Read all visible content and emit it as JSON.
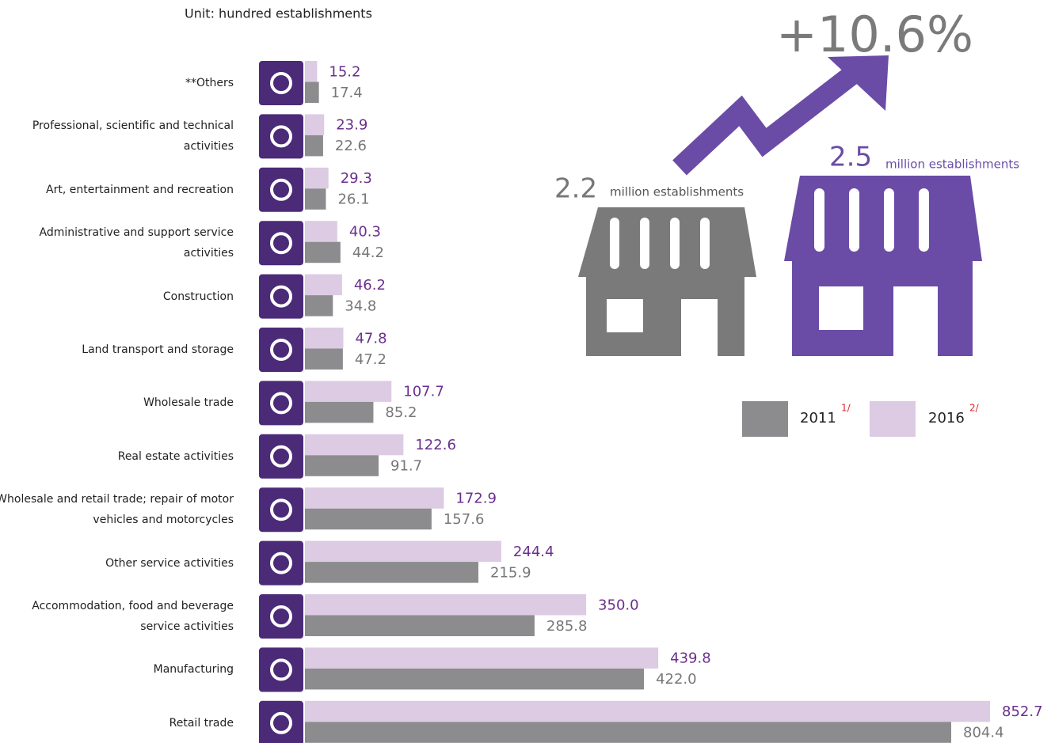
{
  "chart_data": {
    "type": "hbar-grouped",
    "title": "Unit: hundred establishments",
    "categories": [
      "**Others",
      "Professional, scientific and technical activities",
      "Art, entertainment and recreation",
      "Administrative and support service activities",
      "Construction",
      "Land transport and storage",
      "Wholesale trade",
      "Real estate activities",
      "Wholesale and retail trade; repair of motor vehicles and motorcycles",
      "Other service activities",
      "Accommodation, food and beverage service activities",
      "Manufacturing",
      "Retail trade"
    ],
    "series": [
      {
        "name": "2011",
        "color": "#8c8c8e",
        "label_color": "#777777",
        "values": [
          17.4,
          22.6,
          26.1,
          44.2,
          34.8,
          47.2,
          85.2,
          91.7,
          157.6,
          215.9,
          285.8,
          422.0,
          804.4
        ],
        "value_labels": [
          "17.4",
          "22.6",
          "26.1",
          "44.2",
          "34.8",
          "47.2",
          "85.2",
          "91.7",
          "157.6",
          "215.9",
          "285.8",
          "422.0",
          "804.4"
        ]
      },
      {
        "name": "2016",
        "color": "#dccbe3",
        "label_color": "#6a2f8e",
        "values": [
          15.2,
          23.9,
          29.3,
          40.3,
          46.2,
          47.8,
          107.7,
          122.6,
          172.9,
          244.4,
          350.0,
          439.8,
          852.7
        ],
        "value_labels": [
          "15.2",
          "23.9",
          "29.3",
          "40.3",
          "46.2",
          "47.8",
          "107.7",
          "122.6",
          "172.9",
          "244.4",
          "350.0",
          "439.8",
          "852.7"
        ]
      }
    ],
    "legend_notes": [
      "1/",
      "2/"
    ]
  },
  "infographic": {
    "growth": "+10.6%",
    "count_2011": "2.2",
    "unit_2011": "million establishments",
    "count_2016": "2.5",
    "unit_2016": "million establishments"
  }
}
